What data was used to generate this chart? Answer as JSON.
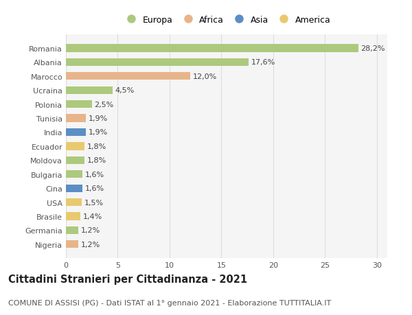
{
  "countries": [
    "Romania",
    "Albania",
    "Marocco",
    "Ucraina",
    "Polonia",
    "Tunisia",
    "India",
    "Ecuador",
    "Moldova",
    "Bulgaria",
    "Cina",
    "USA",
    "Brasile",
    "Germania",
    "Nigeria"
  ],
  "values": [
    28.2,
    17.6,
    12.0,
    4.5,
    2.5,
    1.9,
    1.9,
    1.8,
    1.8,
    1.6,
    1.6,
    1.5,
    1.4,
    1.2,
    1.2
  ],
  "labels": [
    "28,2%",
    "17,6%",
    "12,0%",
    "4,5%",
    "2,5%",
    "1,9%",
    "1,9%",
    "1,8%",
    "1,8%",
    "1,6%",
    "1,6%",
    "1,5%",
    "1,4%",
    "1,2%",
    "1,2%"
  ],
  "continents": [
    "Europa",
    "Europa",
    "Africa",
    "Europa",
    "Europa",
    "Africa",
    "Asia",
    "America",
    "Europa",
    "Europa",
    "Asia",
    "America",
    "America",
    "Europa",
    "Africa"
  ],
  "continent_colors": {
    "Europa": "#adc97e",
    "Africa": "#e8b48a",
    "Asia": "#5b8ec4",
    "America": "#e8c96e"
  },
  "legend_order": [
    "Europa",
    "Africa",
    "Asia",
    "America"
  ],
  "xlim": [
    0,
    31
  ],
  "xticks": [
    0,
    5,
    10,
    15,
    20,
    25,
    30
  ],
  "title": "Cittadini Stranieri per Cittadinanza - 2021",
  "subtitle": "COMUNE DI ASSISI (PG) - Dati ISTAT al 1° gennaio 2021 - Elaborazione TUTTITALIA.IT",
  "background_color": "#ffffff",
  "bar_background": "#f5f5f5",
  "grid_color": "#dddddd",
  "title_fontsize": 10.5,
  "subtitle_fontsize": 8,
  "label_fontsize": 8,
  "tick_fontsize": 8
}
